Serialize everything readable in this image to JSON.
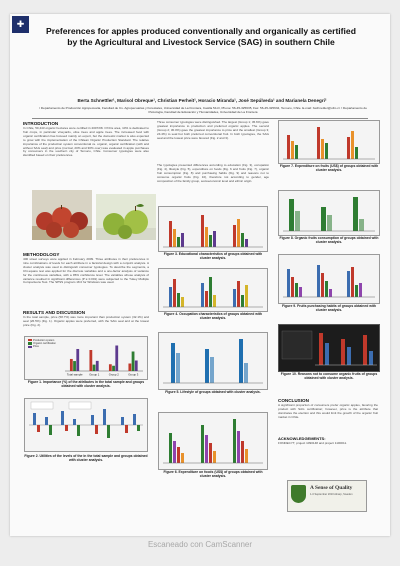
{
  "poster": {
    "logo": "✚",
    "title": "Preferences for apples produced conventionally and organically as certified by the Agricultural and Livestock Service (SAG) in southern Chile",
    "authors": "Berta Schnettler¹, Marisol Obreque¹, Christian Perheit¹, Horacio Miranda¹, José Sepúlveda¹ and Marianela Denegri²",
    "affiliation": "¹ Departamento de Producción Agropecuaria, Facultad de Cs. Agropecuarias y Forestales, Universidad de La Frontera, Casilla 54-D, Phone: 56-45-325635, Fax: 56-45-325634, Temuco, Chile. E-mail: bschnettler@ufro.cl. ² Departamento de Psicología, Facultad de Educación y Humanidades, Universidad de La Frontera"
  },
  "sections": {
    "introduction": {
      "heading": "INTRODUCTION",
      "body": "In Chile, 50,443 organic hectares were certified in 2007/08. Of this area, 10% is dedicated to fruit crops, in particular vineyards, olive trees and apple trees. The increased food with organic certification has focused mainly on export, but the domestic market is also expected to grow with the implementation of the Chilean Organic Production Standard. The relative importance of the production system conventional vs. organic, organic certification (with and without SAG seal) and price (normal, 20% and 30% over) was evaluated in apple purchases by consumers in the southern city of Temuco, Chile. Consumer typologies were also identified based on their preferences."
    },
    "methodology": {
      "heading": "METHODOLOGY",
      "body": "400 street surveys were applied in February 2009. Three attributes in their preferences in nine combinations of levels for each attribute in a factorial design with a conjoint analysis. A cluster analysis was used to distinguish consumer typologies. To describe the segments, a Chi-square test was applied for the discrete variables and a one-factor analysis of variance for the continuous variables, with a 95% confidence level. The variables whose analysis of variance resulted in significant differences (P ≤ 0.001) were subjected to the Tukey Multiple Comparisons Test. The SPSS program 18.0 for Windows was used."
    },
    "results": {
      "heading": "RESULTS AND DISCUSSION",
      "body": "In the total sample, price (58.7%) was more important than production system (32.1%) and seal (26.5%) (Fig. 1). Organic apples were preferred, with the SAG seal and at the lowest price (Fig. 2)."
    },
    "middle_text": {
      "body1": "Three consumer typologies were distinguished. The largest (Group 1; 45.6%) gave greatest importance to production and preferred organic apples. The second (Group 2; 30.0%) gave the greatest importance to price and the smallest (Group 3; 24.4%) to seal but both preferred conventional fruit. In both typologies, the SAG seal and the lowest price were favored (Fig. 2 and 3).",
      "body2": "The typologies presented differences according to education (Fig. 3), occupation (Fig. 4), lifestyle (Fig. 5), expenditure on foods (Fig. 6 and fruits (Fig. 7), organic fruit consumption (Fig. 8) and purchasing habits (Fig. 9) and reasons not to consume organic fruits (Fig. 10), therefore not according to gender, age composition of the family group, socioeconomic level and ethnic origin."
    },
    "conclusion": {
      "heading": "CONCLUSION",
      "body": "A significant proportion of consumers prefer organic apples, favoring the product with SAG certification; however, price is the attribute that dominates the election and this would limit the growth of the organic fruit market in Chile."
    },
    "acknowledgements": {
      "heading": "ACKNOWLEDGEMENTS:",
      "body": "FONDECYT, project 1090148 and project 1100011."
    }
  },
  "figures": {
    "fig1": {
      "caption": "Figure 1. Importance (%) of the attributes in the total sample and groups obtained with cluster analysis.",
      "legend": [
        "Production system",
        "Organic certification",
        "Price"
      ]
    },
    "fig2": {
      "caption": "Figure 2. Utilities of the levels of the in the total sample and groups obtained with cluster analysis."
    },
    "fig3": {
      "caption": "Figure 3. Educational characteristics of groups obtained with cluster analysis."
    },
    "fig4": {
      "caption": "Figure 4. Occupation characteristics of groups obtained with cluster analysis."
    },
    "fig5": {
      "caption": "Figure 5. Lifestyle of groups obtained with cluster analysis."
    },
    "fig6": {
      "caption": "Figure 6. Expenditure on foods (US$) of groups obtained with cluster analysis."
    },
    "fig7": {
      "caption": "Figure 7. Expenditure on fruits (US$) of groups obtained with cluster analysis."
    },
    "fig8": {
      "caption": "Figure 8. Organic fruits consumption of groups obtained with cluster analysis."
    },
    "fig9": {
      "caption": "Figure 9. Fruits purchasing habits of groups obtained with cluster analysis."
    },
    "fig10": {
      "caption": "Figure 10. Reasons not to consume organic fruits of groups obtained with cluster analysis."
    }
  },
  "badge": {
    "title": "A Sense of Quality",
    "subtitle": "1-3 September 2010 Alnarp, Sweden"
  },
  "footer": {
    "watermark": "Escaneado con CamScanner"
  },
  "chart_data": [
    {
      "type": "bar",
      "title": "Figure 1. Importance (%) of the attributes in the total sample and groups obtained with cluster analysis.",
      "categories": [
        "Total sample",
        "Group 1",
        "Group 2",
        "Group 3"
      ],
      "series": [
        {
          "name": "Production system",
          "values": [
            32.1,
            56,
            18,
            20
          ]
        },
        {
          "name": "Organic certification",
          "values": [
            26.5,
            17,
            14,
            52
          ]
        },
        {
          "name": "Price",
          "values": [
            58.7,
            27,
            68,
            28
          ]
        }
      ],
      "ylim": [
        0,
        80
      ],
      "colors": [
        "#c0392b",
        "#2e7d32",
        "#5d3a8e"
      ]
    }
  ]
}
